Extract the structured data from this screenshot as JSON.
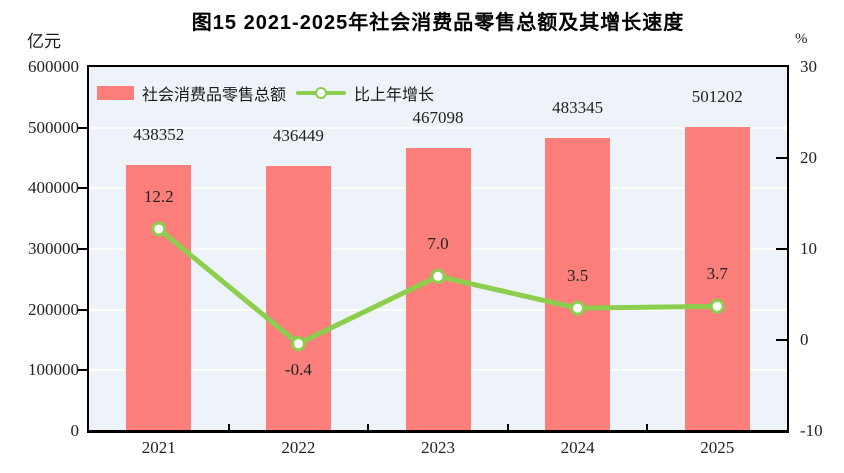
{
  "figure": {
    "title": "图15  2021-2025年社会消费品零售总额及其增长速度",
    "left_unit": "亿元",
    "right_unit": "%"
  },
  "legend": {
    "items": [
      {
        "label": "社会消费品零售总额",
        "type": "bar"
      },
      {
        "label": "比上年增长",
        "type": "line"
      }
    ],
    "position": "top-left inside plot"
  },
  "colors": {
    "bar": "#fc7f7c",
    "line": "#8cce4d",
    "marker_fill": "#ffffff",
    "plot_bg": "#edf3f8",
    "grid": "#ffffff",
    "axis": "#000000",
    "text": "#222222"
  },
  "chart_data": {
    "type": "bar",
    "subtype": "combo bar+line, dual axis",
    "title": "图15  2021-2025年社会消费品零售总额及其增长速度",
    "categories": [
      "2021",
      "2022",
      "2023",
      "2024",
      "2025"
    ],
    "series": [
      {
        "name": "社会消费品零售总额",
        "type": "bar",
        "axis": "left",
        "unit": "亿元",
        "values": [
          438352,
          436449,
          467098,
          483345,
          501202
        ],
        "labels": [
          "438352",
          "436449",
          "467098",
          "483345",
          "501202"
        ]
      },
      {
        "name": "比上年增长",
        "type": "line",
        "axis": "right",
        "unit": "%",
        "values": [
          12.2,
          -0.4,
          7.0,
          3.5,
          3.7
        ],
        "labels": [
          "12.2",
          "-0.4",
          "7.0",
          "3.5",
          "3.7"
        ]
      }
    ],
    "left_axis": {
      "unit": "亿元",
      "min": 0,
      "max": 600000,
      "step": 100000,
      "ticks": [
        {
          "value": 600000,
          "label": "600000"
        },
        {
          "value": 500000,
          "label": "500000"
        },
        {
          "value": 400000,
          "label": "400000"
        },
        {
          "value": 300000,
          "label": "300000"
        },
        {
          "value": 200000,
          "label": "200000"
        },
        {
          "value": 100000,
          "label": "100000"
        },
        {
          "value": 0,
          "label": "0"
        }
      ]
    },
    "right_axis": {
      "unit": "%",
      "min": -10,
      "max": 30,
      "step": 10,
      "ticks": [
        {
          "value": 30,
          "label": "30"
        },
        {
          "value": 20,
          "label": "20"
        },
        {
          "value": 10,
          "label": "10"
        },
        {
          "value": 0,
          "label": "0"
        },
        {
          "value": -10,
          "label": "-10"
        }
      ]
    },
    "grid": "horizontal white gridlines every 100000 (left axis)",
    "legend_position": "top-left inside plot area"
  }
}
